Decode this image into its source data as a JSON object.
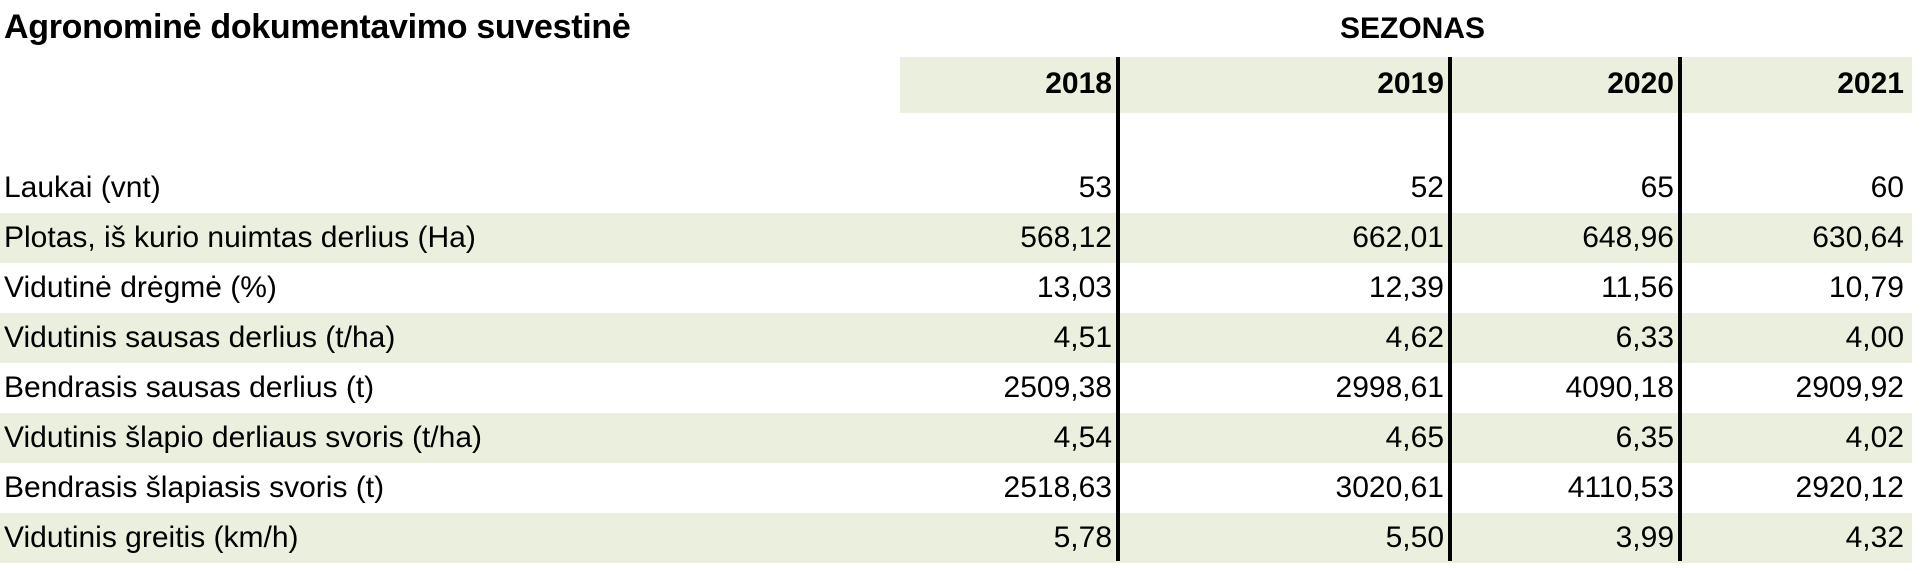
{
  "title": "Agronominė dokumentavimo suvestinė",
  "season_header": "SEZONAS",
  "years": [
    "2018",
    "2019",
    "2020",
    "2021"
  ],
  "rows": [
    {
      "label": "Laukai (vnt)",
      "values": [
        "53",
        "52",
        "65",
        "60"
      ]
    },
    {
      "label": "Plotas, iš kurio nuimtas derlius (Ha)",
      "values": [
        "568,12",
        "662,01",
        "648,96",
        "630,64"
      ]
    },
    {
      "label": "Vidutinė drėgmė (%)",
      "values": [
        "13,03",
        "12,39",
        "11,56",
        "10,79"
      ]
    },
    {
      "label": "Vidutinis sausas derlius (t/ha)",
      "values": [
        "4,51",
        "4,62",
        "6,33",
        "4,00"
      ]
    },
    {
      "label": "Bendrasis sausas derlius (t)",
      "values": [
        "2509,38",
        "2998,61",
        "4090,18",
        "2909,92"
      ]
    },
    {
      "label": "Vidutinis šlapio derliaus svoris (t/ha)",
      "values": [
        "4,54",
        "4,65",
        "6,35",
        "4,02"
      ]
    },
    {
      "label": "Bendrasis šlapiasis svoris (t)",
      "values": [
        "2518,63",
        "3020,61",
        "4110,53",
        "2920,12"
      ]
    },
    {
      "label": "Vidutinis greitis (km/h)",
      "values": [
        "5,78",
        "5,50",
        "3,99",
        "4,32"
      ]
    }
  ],
  "colors": {
    "row_shading": "#ebf0de",
    "divider": "#000000"
  }
}
